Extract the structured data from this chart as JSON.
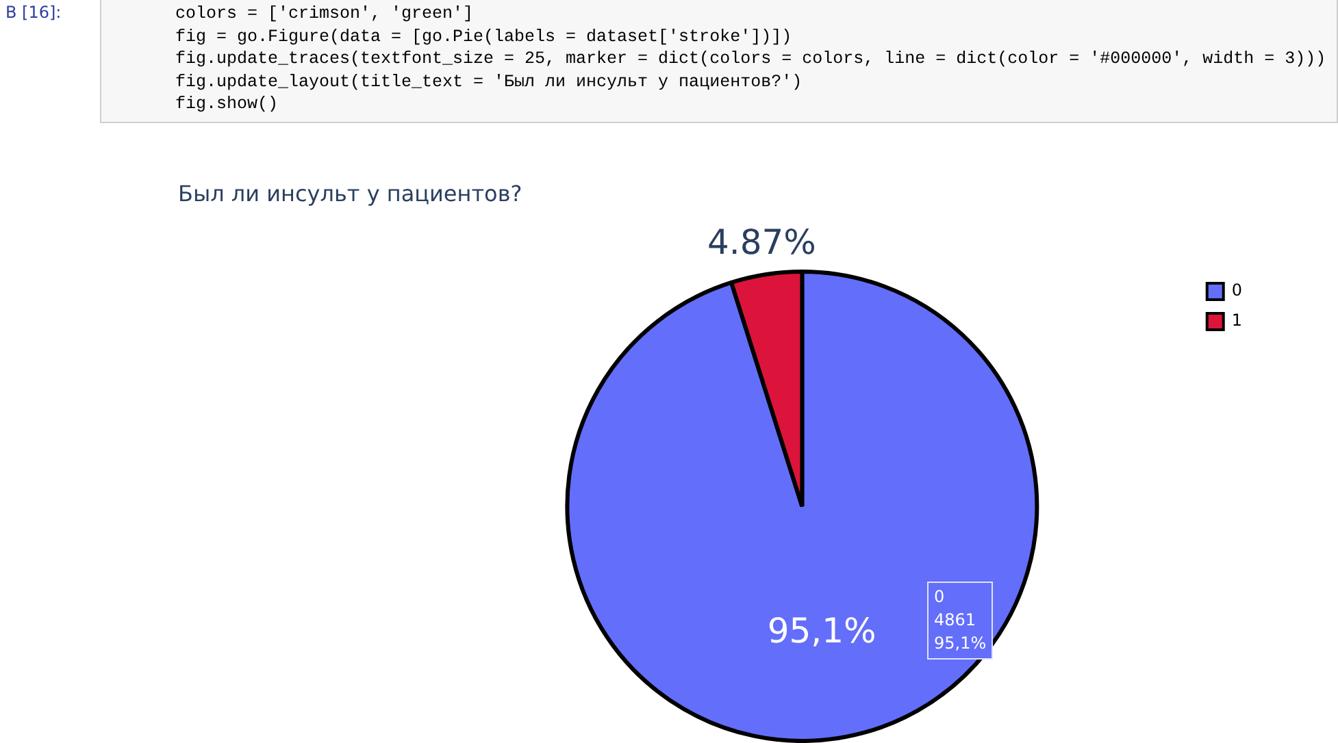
{
  "chart_data": {
    "type": "pie",
    "title": "Был ли инсульт у пациентов?",
    "categories": [
      "0",
      "1"
    ],
    "values": [
      95.13,
      4.87
    ],
    "colors": [
      "#636efa",
      "#dc143c"
    ],
    "value_labels": [
      "95,1%",
      "4.87%"
    ],
    "legend": "top right",
    "annotations": [
      "В [16]:",
      "colors = ['crimson', 'green']\nfig = go.Figure(data = [go.Pie(labels = dataset['stroke'])])\nfig.update_traces(textfont_size = 25, marker = dict(colors = colors, line = dict(color = '#000000', width = 3)))\nfig.update_layout(title_text = 'Был ли инсульт у пациентов?')\nfig.show()",
      "0\n4861\n95,1%"
    ]
  }
}
